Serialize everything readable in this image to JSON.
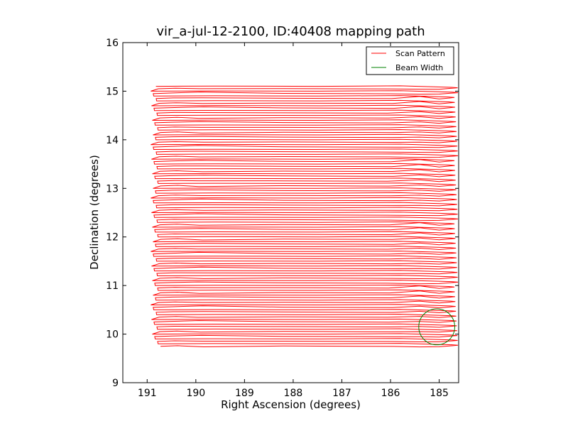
{
  "chart_data": {
    "type": "line",
    "title": "vir_a-jul-12-2100, ID:40408 mapping path",
    "xlabel": "Right Ascension (degrees)",
    "ylabel": "Declination (degrees)",
    "xlim": [
      191.5,
      184.6
    ],
    "ylim": [
      9,
      16
    ],
    "x_inverted": true,
    "xticks": [
      191,
      190,
      189,
      188,
      187,
      186,
      185
    ],
    "yticks": [
      9,
      10,
      11,
      12,
      13,
      14,
      15,
      16
    ],
    "grid": false,
    "legend": {
      "placement": "top-right",
      "entries": [
        {
          "label": "Scan Pattern",
          "color": "#ff0000"
        },
        {
          "label": "Beam Width",
          "color": "#008000"
        }
      ]
    },
    "series": [
      {
        "name": "Scan Pattern",
        "color": "#ff0000",
        "kind": "raster",
        "dec_start": 9.75,
        "dec_end": 15.0,
        "dec_step": 0.1,
        "ra_west": 190.8,
        "ra_east": 184.65
      },
      {
        "name": "Beam Width",
        "color": "#008000",
        "kind": "circle",
        "center_ra": 185.05,
        "center_dec": 10.15,
        "radius_deg": 0.37
      }
    ]
  }
}
